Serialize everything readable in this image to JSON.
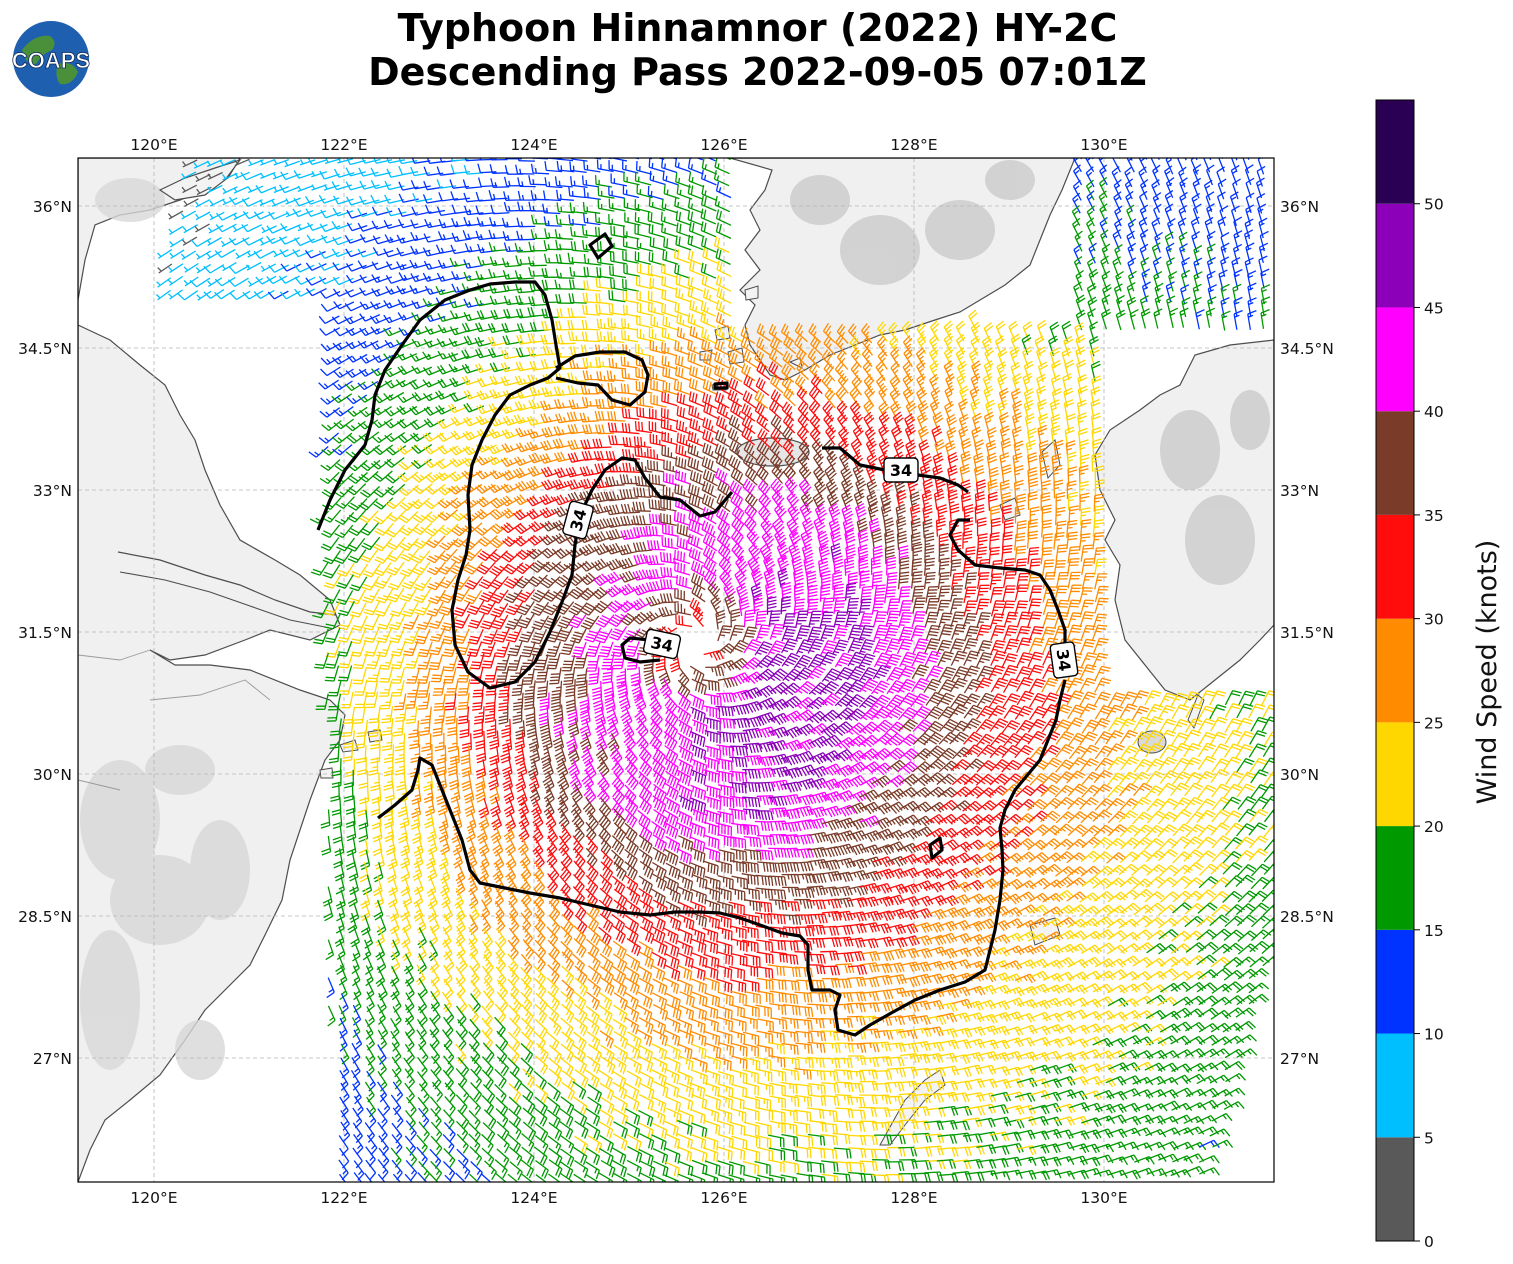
{
  "logo_text": "COAPS",
  "title_line1": "Typhoon Hinnamnor (2022) HY-2C",
  "title_line2": "Descending Pass 2022-09-05 07:01Z",
  "map": {
    "lon_range": [
      119.2,
      131.8
    ],
    "lat_range": [
      25.7,
      36.5
    ],
    "lon_ticks": [
      {
        "value": 120,
        "label": "120°E"
      },
      {
        "value": 122,
        "label": "122°E"
      },
      {
        "value": 124,
        "label": "124°E"
      },
      {
        "value": 126,
        "label": "126°E"
      },
      {
        "value": 128,
        "label": "128°E"
      },
      {
        "value": 130,
        "label": "130°E"
      }
    ],
    "lat_ticks": [
      {
        "value": 36,
        "label": "36°N"
      },
      {
        "value": 34.5,
        "label": "34.5°N"
      },
      {
        "value": 33,
        "label": "33°N"
      },
      {
        "value": 31.5,
        "label": "31.5°N"
      },
      {
        "value": 30,
        "label": "30°N"
      },
      {
        "value": 28.5,
        "label": "28.5°N"
      },
      {
        "value": 27,
        "label": "27°N"
      }
    ],
    "gridlines": true,
    "storm_center": {
      "lon": 125.7,
      "lat": 31.4
    },
    "contour_value": 34,
    "contour_labels": [
      "34",
      "34",
      "34",
      "34"
    ]
  },
  "colorbar": {
    "label": "Wind Speed (knots)",
    "ticks": [
      "0",
      "5",
      "10",
      "15",
      "20",
      "25",
      "30",
      "35",
      "40",
      "45",
      "50"
    ],
    "bands": [
      {
        "from": 0,
        "to": 5,
        "color": "#595959"
      },
      {
        "from": 5,
        "to": 10,
        "color": "#00bfff"
      },
      {
        "from": 10,
        "to": 15,
        "color": "#0033ff"
      },
      {
        "from": 15,
        "to": 20,
        "color": "#009900"
      },
      {
        "from": 20,
        "to": 25,
        "color": "#ffd700"
      },
      {
        "from": 25,
        "to": 30,
        "color": "#ff8c00"
      },
      {
        "from": 30,
        "to": 35,
        "color": "#ff0d0d"
      },
      {
        "from": 35,
        "to": 40,
        "color": "#7a3b28"
      },
      {
        "from": 40,
        "to": 45,
        "color": "#ff00ff"
      },
      {
        "from": 45,
        "to": 50,
        "color": "#8b00b8"
      },
      {
        "from": 50,
        "to": 55,
        "color": "#2a0055"
      }
    ]
  }
}
